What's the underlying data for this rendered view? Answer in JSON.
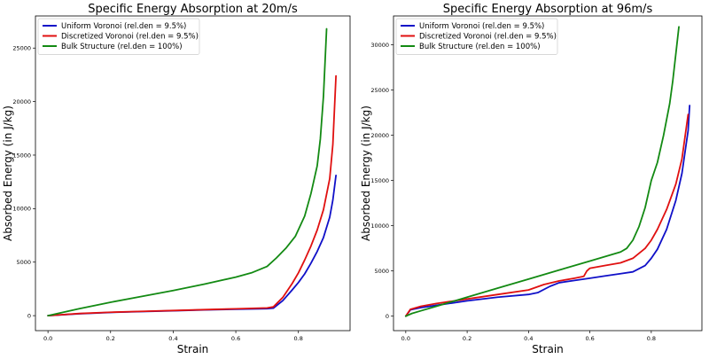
{
  "chart_data": [
    {
      "type": "line",
      "title": "Specific Energy Absorption at 20m/s",
      "xlabel": "Strain",
      "ylabel": "Absorbed Energy (in J/kg)",
      "xlim": [
        -0.04,
        0.965
      ],
      "ylim": [
        -1400,
        28000
      ],
      "xticks": [
        0.0,
        0.2,
        0.4,
        0.6,
        0.8
      ],
      "xtick_labels": [
        "0.0",
        "0.2",
        "0.4",
        "0.6",
        "0.8"
      ],
      "yticks": [
        0,
        5000,
        10000,
        15000,
        20000,
        25000
      ],
      "ytick_labels": [
        "0",
        "5000",
        "10000",
        "15000",
        "20000",
        "25000"
      ],
      "grid": false,
      "legend_position": "top-left",
      "series": [
        {
          "name": "Uniform Voronoi (rel.den = 9.5%)",
          "color": "#1010c8",
          "x": [
            0.0,
            0.1,
            0.2,
            0.3,
            0.4,
            0.5,
            0.6,
            0.7,
            0.72,
            0.75,
            0.78,
            0.8,
            0.82,
            0.84,
            0.86,
            0.88,
            0.9,
            0.91,
            0.92
          ],
          "y": [
            0,
            180,
            300,
            380,
            460,
            540,
            600,
            650,
            700,
            1400,
            2400,
            3100,
            3900,
            4900,
            6000,
            7300,
            9200,
            10800,
            13100
          ]
        },
        {
          "name": "Discretized Voronoi (rel.den = 9.5%)",
          "color": "#e01010",
          "x": [
            0.0,
            0.1,
            0.2,
            0.3,
            0.4,
            0.5,
            0.6,
            0.7,
            0.72,
            0.75,
            0.78,
            0.8,
            0.82,
            0.84,
            0.86,
            0.88,
            0.9,
            0.91,
            0.92
          ],
          "y": [
            0,
            200,
            320,
            400,
            480,
            560,
            640,
            720,
            820,
            1700,
            3000,
            4000,
            5200,
            6500,
            8000,
            9900,
            12800,
            16000,
            22400
          ]
        },
        {
          "name": "Bulk Structure (rel.den = 100%)",
          "color": "#138a13",
          "x": [
            0.0,
            0.1,
            0.2,
            0.3,
            0.4,
            0.5,
            0.6,
            0.65,
            0.7,
            0.73,
            0.76,
            0.79,
            0.82,
            0.84,
            0.86,
            0.87,
            0.88,
            0.89
          ],
          "y": [
            0,
            650,
            1250,
            1800,
            2350,
            2950,
            3600,
            4000,
            4600,
            5400,
            6300,
            7400,
            9300,
            11400,
            14000,
            16500,
            20500,
            26800
          ]
        }
      ]
    },
    {
      "type": "line",
      "title": "Specific Energy Absorption at 96m/s",
      "xlabel": "Strain",
      "ylabel": "Absorbed Energy (in J/kg)",
      "xlim": [
        -0.04,
        0.965
      ],
      "ylim": [
        -1600,
        33200
      ],
      "xticks": [
        0.0,
        0.2,
        0.4,
        0.6,
        0.8
      ],
      "xtick_labels": [
        "0.0",
        "0.2",
        "0.4",
        "0.6",
        "0.8"
      ],
      "yticks": [
        0,
        5000,
        10000,
        15000,
        20000,
        25000,
        30000
      ],
      "ytick_labels": [
        "0",
        "5000",
        "10000",
        "15000",
        "20000",
        "25000",
        "30000"
      ],
      "grid": false,
      "legend_position": "top-left",
      "series": [
        {
          "name": "Uniform Voronoi (rel.den = 9.5%)",
          "color": "#1010c8",
          "x": [
            0.0,
            0.015,
            0.05,
            0.1,
            0.2,
            0.3,
            0.4,
            0.43,
            0.47,
            0.5,
            0.55,
            0.6,
            0.65,
            0.7,
            0.74,
            0.78,
            0.8,
            0.82,
            0.85,
            0.88,
            0.9,
            0.92,
            0.925
          ],
          "y": [
            0,
            700,
            950,
            1200,
            1700,
            2100,
            2400,
            2600,
            3300,
            3700,
            3950,
            4200,
            4450,
            4700,
            4900,
            5600,
            6400,
            7400,
            9600,
            12800,
            15800,
            20500,
            23300
          ]
        },
        {
          "name": "Discretized Voronoi (rel.den = 9.5%)",
          "color": "#e01010",
          "x": [
            0.0,
            0.015,
            0.05,
            0.1,
            0.2,
            0.3,
            0.4,
            0.45,
            0.5,
            0.55,
            0.58,
            0.59,
            0.6,
            0.65,
            0.7,
            0.74,
            0.78,
            0.8,
            0.82,
            0.85,
            0.88,
            0.9,
            0.92
          ],
          "y": [
            0,
            750,
            1100,
            1400,
            1900,
            2400,
            2900,
            3500,
            3900,
            4200,
            4400,
            5000,
            5300,
            5600,
            5900,
            6400,
            7500,
            8400,
            9600,
            11800,
            14600,
            17400,
            22300
          ]
        },
        {
          "name": "Bulk Structure (rel.den = 100%)",
          "color": "#138a13",
          "x": [
            0.0,
            0.02,
            0.05,
            0.1,
            0.2,
            0.3,
            0.4,
            0.5,
            0.6,
            0.7,
            0.72,
            0.74,
            0.76,
            0.78,
            0.8,
            0.82,
            0.84,
            0.86,
            0.87,
            0.88,
            0.89
          ],
          "y": [
            0,
            300,
            600,
            1100,
            2100,
            3100,
            4100,
            5100,
            6100,
            7100,
            7500,
            8400,
            9900,
            12000,
            15000,
            17000,
            20000,
            23500,
            26000,
            29000,
            32000
          ]
        }
      ]
    }
  ]
}
